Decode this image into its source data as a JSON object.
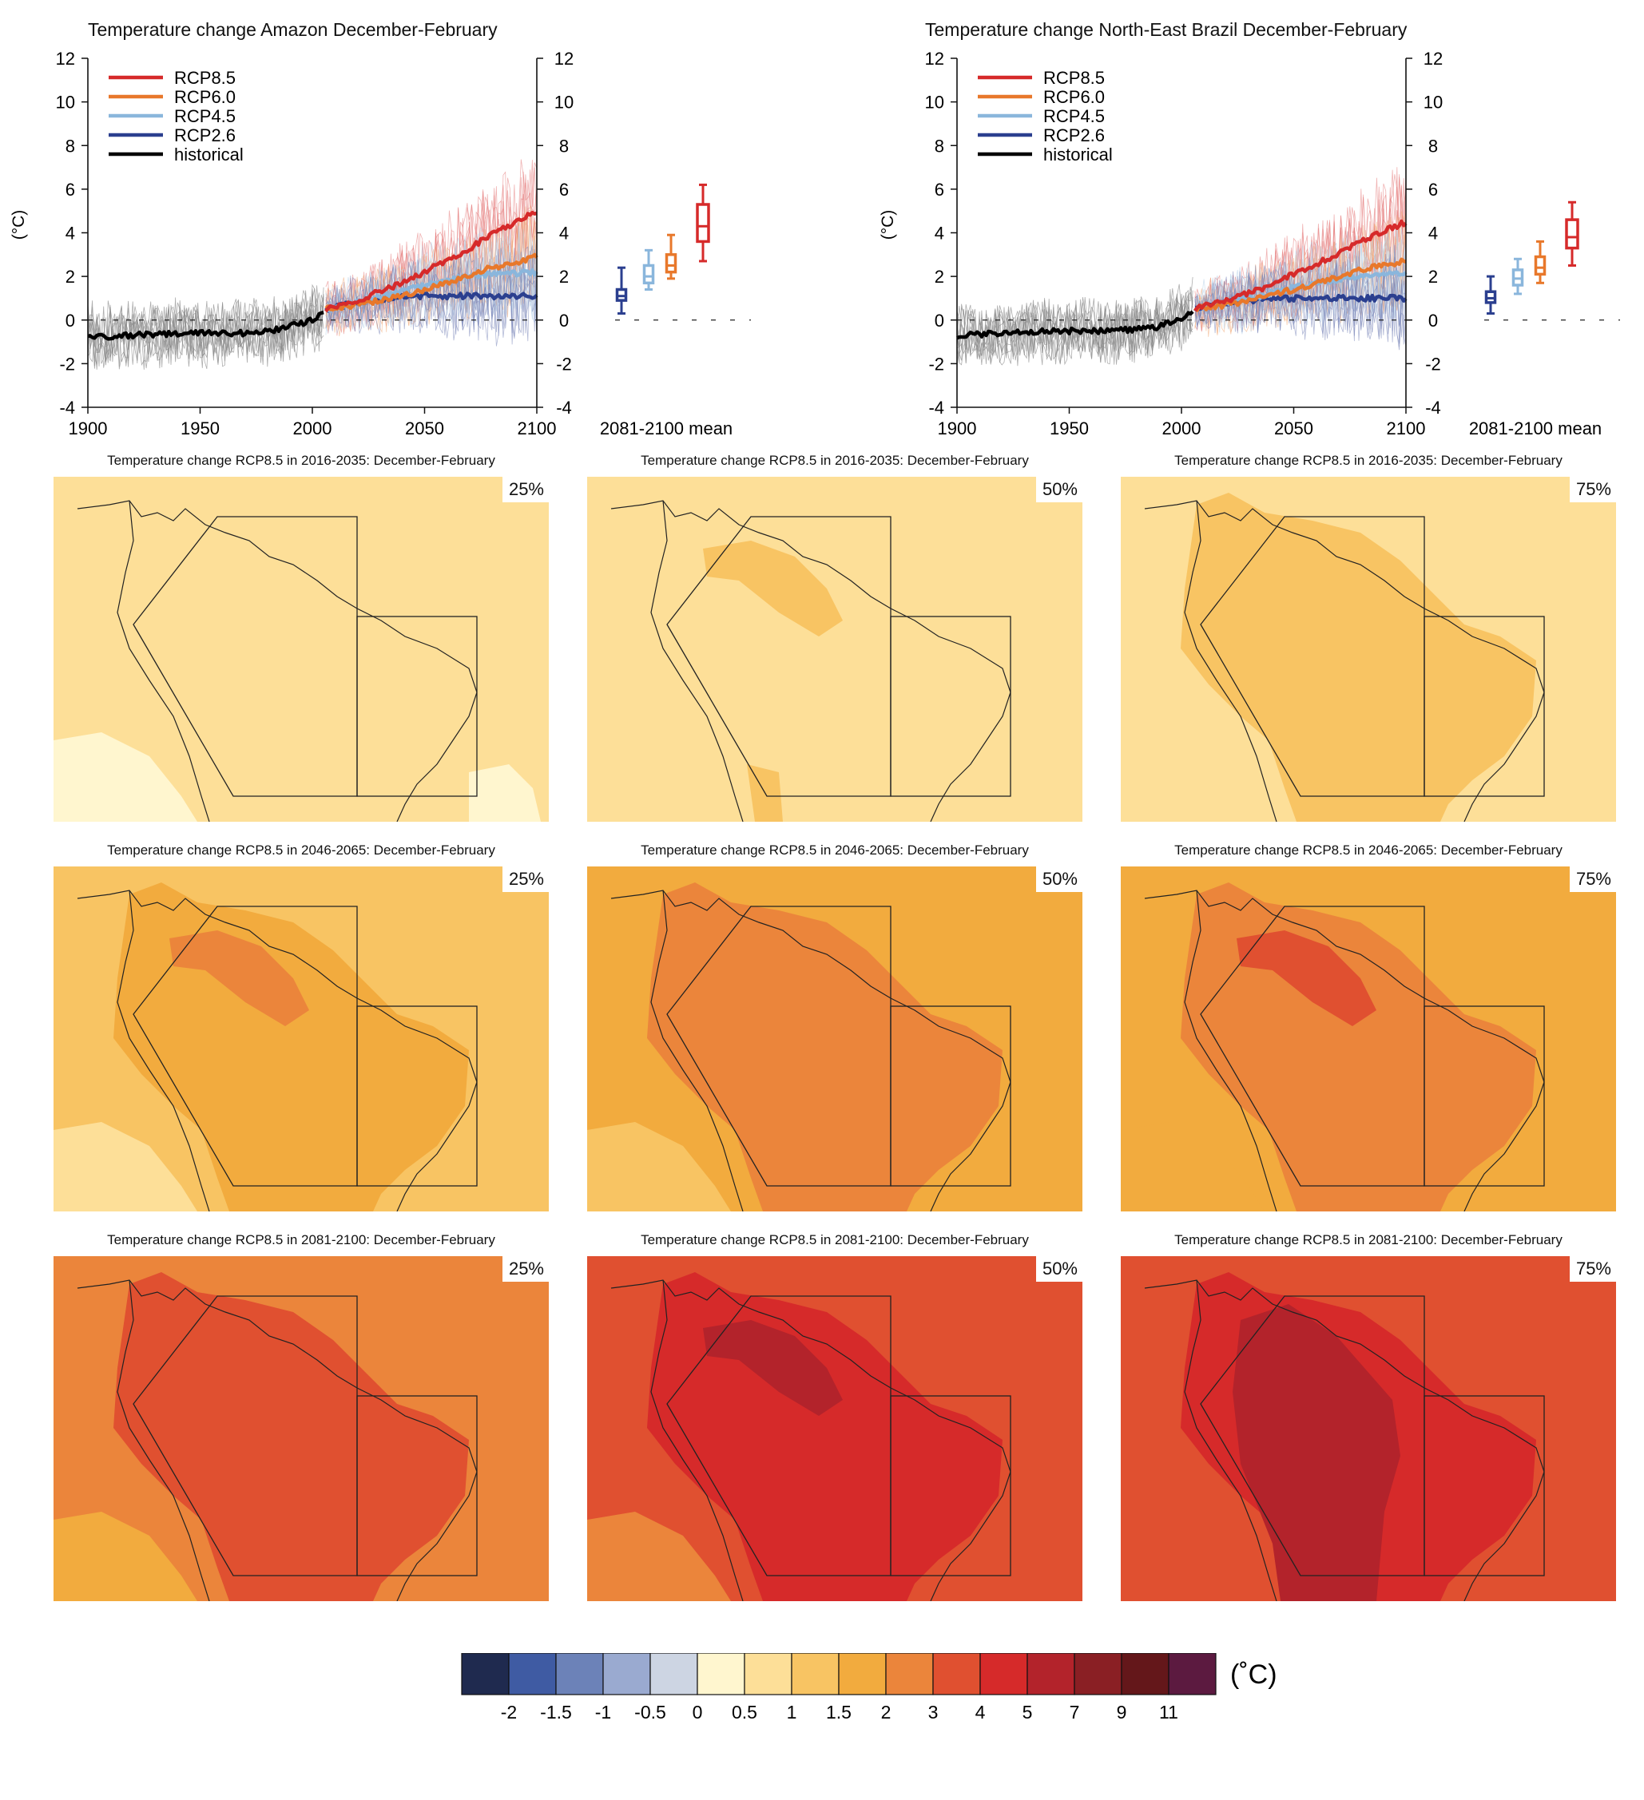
{
  "timeseries": [
    {
      "title": "Temperature change Amazon December-February",
      "ylabel": "(°C)",
      "box_label": "2081-2100 mean",
      "seed": 11,
      "chart_data": {
        "type": "line",
        "xlim": [
          1900,
          2100
        ],
        "ylim": [
          -4,
          12
        ],
        "xticks": [
          "1900",
          "1950",
          "2000",
          "2050",
          "2100"
        ],
        "yticks": [
          "-4",
          "-2",
          "0",
          "2",
          "4",
          "6",
          "8",
          "10",
          "12"
        ],
        "legend_position": "top-left",
        "series": [
          {
            "name": "RCP8.5",
            "color": "#d62a2a",
            "x": [
              2006,
              2020,
              2035,
              2050,
              2065,
              2080,
              2100
            ],
            "y": [
              0.5,
              0.9,
              1.5,
              2.2,
              3.0,
              3.9,
              5.0
            ]
          },
          {
            "name": "RCP6.0",
            "color": "#e8782b",
            "x": [
              2006,
              2020,
              2035,
              2050,
              2065,
              2080,
              2100
            ],
            "y": [
              0.5,
              0.7,
              1.0,
              1.4,
              1.9,
              2.4,
              2.9
            ]
          },
          {
            "name": "RCP4.5",
            "color": "#8ab6dc",
            "x": [
              2006,
              2020,
              2035,
              2050,
              2065,
              2080,
              2100
            ],
            "y": [
              0.5,
              0.8,
              1.2,
              1.6,
              1.9,
              2.1,
              2.2
            ]
          },
          {
            "name": "RCP2.6",
            "color": "#2b3f8f",
            "x": [
              2006,
              2020,
              2035,
              2050,
              2065,
              2080,
              2100
            ],
            "y": [
              0.5,
              0.8,
              1.0,
              1.1,
              1.1,
              1.1,
              1.1
            ]
          },
          {
            "name": "historical",
            "color": "#000000",
            "x": [
              1900,
              1920,
              1940,
              1960,
              1970,
              1980,
              1990,
              2000,
              2005
            ],
            "y": [
              -0.8,
              -0.7,
              -0.6,
              -0.6,
              -0.6,
              -0.5,
              -0.3,
              0.0,
              0.3
            ]
          }
        ],
        "boxes": [
          {
            "name": "RCP2.6",
            "color": "#2b3f8f",
            "min": 0.3,
            "q1": 0.9,
            "median": 1.1,
            "q3": 1.4,
            "max": 2.4
          },
          {
            "name": "RCP4.5",
            "color": "#8ab6dc",
            "min": 1.4,
            "q1": 1.7,
            "median": 2.0,
            "q3": 2.5,
            "max": 3.2
          },
          {
            "name": "RCP6.0",
            "color": "#e8782b",
            "min": 1.9,
            "q1": 2.2,
            "median": 2.5,
            "q3": 3.0,
            "max": 3.9
          },
          {
            "name": "RCP8.5",
            "color": "#d62a2a",
            "min": 2.7,
            "q1": 3.6,
            "median": 4.3,
            "q3": 5.3,
            "max": 6.2
          }
        ]
      }
    },
    {
      "title": "Temperature change North-East Brazil December-February",
      "ylabel": "(°C)",
      "box_label": "2081-2100 mean",
      "seed": 37,
      "chart_data": {
        "type": "line",
        "xlim": [
          1900,
          2100
        ],
        "ylim": [
          -4,
          12
        ],
        "xticks": [
          "1900",
          "1950",
          "2000",
          "2050",
          "2100"
        ],
        "yticks": [
          "-4",
          "-2",
          "0",
          "2",
          "4",
          "6",
          "8",
          "10",
          "12"
        ],
        "legend_position": "top-left",
        "series": [
          {
            "name": "RCP8.5",
            "color": "#d62a2a",
            "x": [
              2006,
              2020,
              2035,
              2050,
              2065,
              2080,
              2100
            ],
            "y": [
              0.5,
              0.9,
              1.4,
              2.1,
              2.8,
              3.6,
              4.5
            ]
          },
          {
            "name": "RCP6.0",
            "color": "#e8782b",
            "x": [
              2006,
              2020,
              2035,
              2050,
              2065,
              2080,
              2100
            ],
            "y": [
              0.5,
              0.7,
              1.0,
              1.4,
              1.8,
              2.3,
              2.7
            ]
          },
          {
            "name": "RCP4.5",
            "color": "#8ab6dc",
            "x": [
              2006,
              2020,
              2035,
              2050,
              2065,
              2080,
              2100
            ],
            "y": [
              0.5,
              0.8,
              1.1,
              1.5,
              1.8,
              2.0,
              2.1
            ]
          },
          {
            "name": "RCP2.6",
            "color": "#2b3f8f",
            "x": [
              2006,
              2020,
              2035,
              2050,
              2065,
              2080,
              2100
            ],
            "y": [
              0.5,
              0.8,
              0.9,
              1.0,
              1.0,
              1.0,
              1.0
            ]
          },
          {
            "name": "historical",
            "color": "#000000",
            "x": [
              1900,
              1920,
              1940,
              1960,
              1970,
              1980,
              1990,
              2000,
              2005
            ],
            "y": [
              -0.7,
              -0.6,
              -0.5,
              -0.5,
              -0.5,
              -0.4,
              -0.3,
              0.1,
              0.4
            ]
          }
        ],
        "boxes": [
          {
            "name": "RCP2.6",
            "color": "#2b3f8f",
            "min": 0.3,
            "q1": 0.8,
            "median": 1.0,
            "q3": 1.3,
            "max": 2.0
          },
          {
            "name": "RCP4.5",
            "color": "#8ab6dc",
            "min": 1.2,
            "q1": 1.6,
            "median": 1.9,
            "q3": 2.3,
            "max": 2.8
          },
          {
            "name": "RCP6.0",
            "color": "#e8782b",
            "min": 1.7,
            "q1": 2.1,
            "median": 2.4,
            "q3": 2.9,
            "max": 3.6
          },
          {
            "name": "RCP8.5",
            "color": "#d62a2a",
            "min": 2.5,
            "q1": 3.3,
            "median": 3.8,
            "q3": 4.6,
            "max": 5.4
          }
        ]
      }
    }
  ],
  "maps": {
    "type": "heatmap",
    "rows": [
      {
        "title": "Temperature change RCP8.5 in 2016-2035: December-February",
        "panels": [
          {
            "percentile": "25%",
            "base_bin": 6,
            "regions": [
              {
                "shape": "sw",
                "bin": 5
              },
              {
                "shape": "se",
                "bin": 5
              }
            ]
          },
          {
            "percentile": "50%",
            "base_bin": 6,
            "regions": [
              {
                "shape": "north_blob",
                "bin": 7
              },
              {
                "shape": "andes",
                "bin": 7
              }
            ]
          },
          {
            "percentile": "75%",
            "base_bin": 6,
            "regions": [
              {
                "shape": "continent",
                "bin": 7
              },
              {
                "shape": "sw",
                "bin": 6
              }
            ]
          }
        ]
      },
      {
        "title": "Temperature change RCP8.5 in 2046-2065: December-February",
        "panels": [
          {
            "percentile": "25%",
            "base_bin": 7,
            "regions": [
              {
                "shape": "continent",
                "bin": 8
              },
              {
                "shape": "north_blob",
                "bin": 9
              },
              {
                "shape": "sw",
                "bin": 6
              }
            ]
          },
          {
            "percentile": "50%",
            "base_bin": 8,
            "regions": [
              {
                "shape": "continent",
                "bin": 9
              },
              {
                "shape": "sw",
                "bin": 7
              }
            ]
          },
          {
            "percentile": "75%",
            "base_bin": 8,
            "regions": [
              {
                "shape": "continent",
                "bin": 9
              },
              {
                "shape": "north_blob",
                "bin": 10
              },
              {
                "shape": "sw",
                "bin": 8
              }
            ]
          }
        ]
      },
      {
        "title": "Temperature change RCP8.5 in 2081-2100: December-February",
        "panels": [
          {
            "percentile": "25%",
            "base_bin": 9,
            "regions": [
              {
                "shape": "continent",
                "bin": 10
              },
              {
                "shape": "sw",
                "bin": 8
              }
            ]
          },
          {
            "percentile": "50%",
            "base_bin": 10,
            "regions": [
              {
                "shape": "continent",
                "bin": 11
              },
              {
                "shape": "north_blob",
                "bin": 12
              },
              {
                "shape": "sw",
                "bin": 9
              }
            ]
          },
          {
            "percentile": "75%",
            "base_bin": 10,
            "regions": [
              {
                "shape": "continent",
                "bin": 11
              },
              {
                "shape": "core",
                "bin": 12
              }
            ]
          }
        ]
      }
    ]
  },
  "colorbar": {
    "unit": "(˚C)",
    "colors": [
      "#1f2a4f",
      "#3f5ba3",
      "#6c82b8",
      "#9aaad0",
      "#cdd5e3",
      "#fff6cf",
      "#fddf98",
      "#f8c463",
      "#f2ab3e",
      "#eb853b",
      "#e05030",
      "#d62a2a",
      "#b3232b",
      "#8a1f24",
      "#64171a",
      "#5c1a40"
    ],
    "labels": [
      "-2",
      "-1.5",
      "-1",
      "-0.5",
      "0",
      "0.5",
      "1",
      "1.5",
      "2",
      "3",
      "4",
      "5",
      "7",
      "9",
      "11"
    ]
  }
}
